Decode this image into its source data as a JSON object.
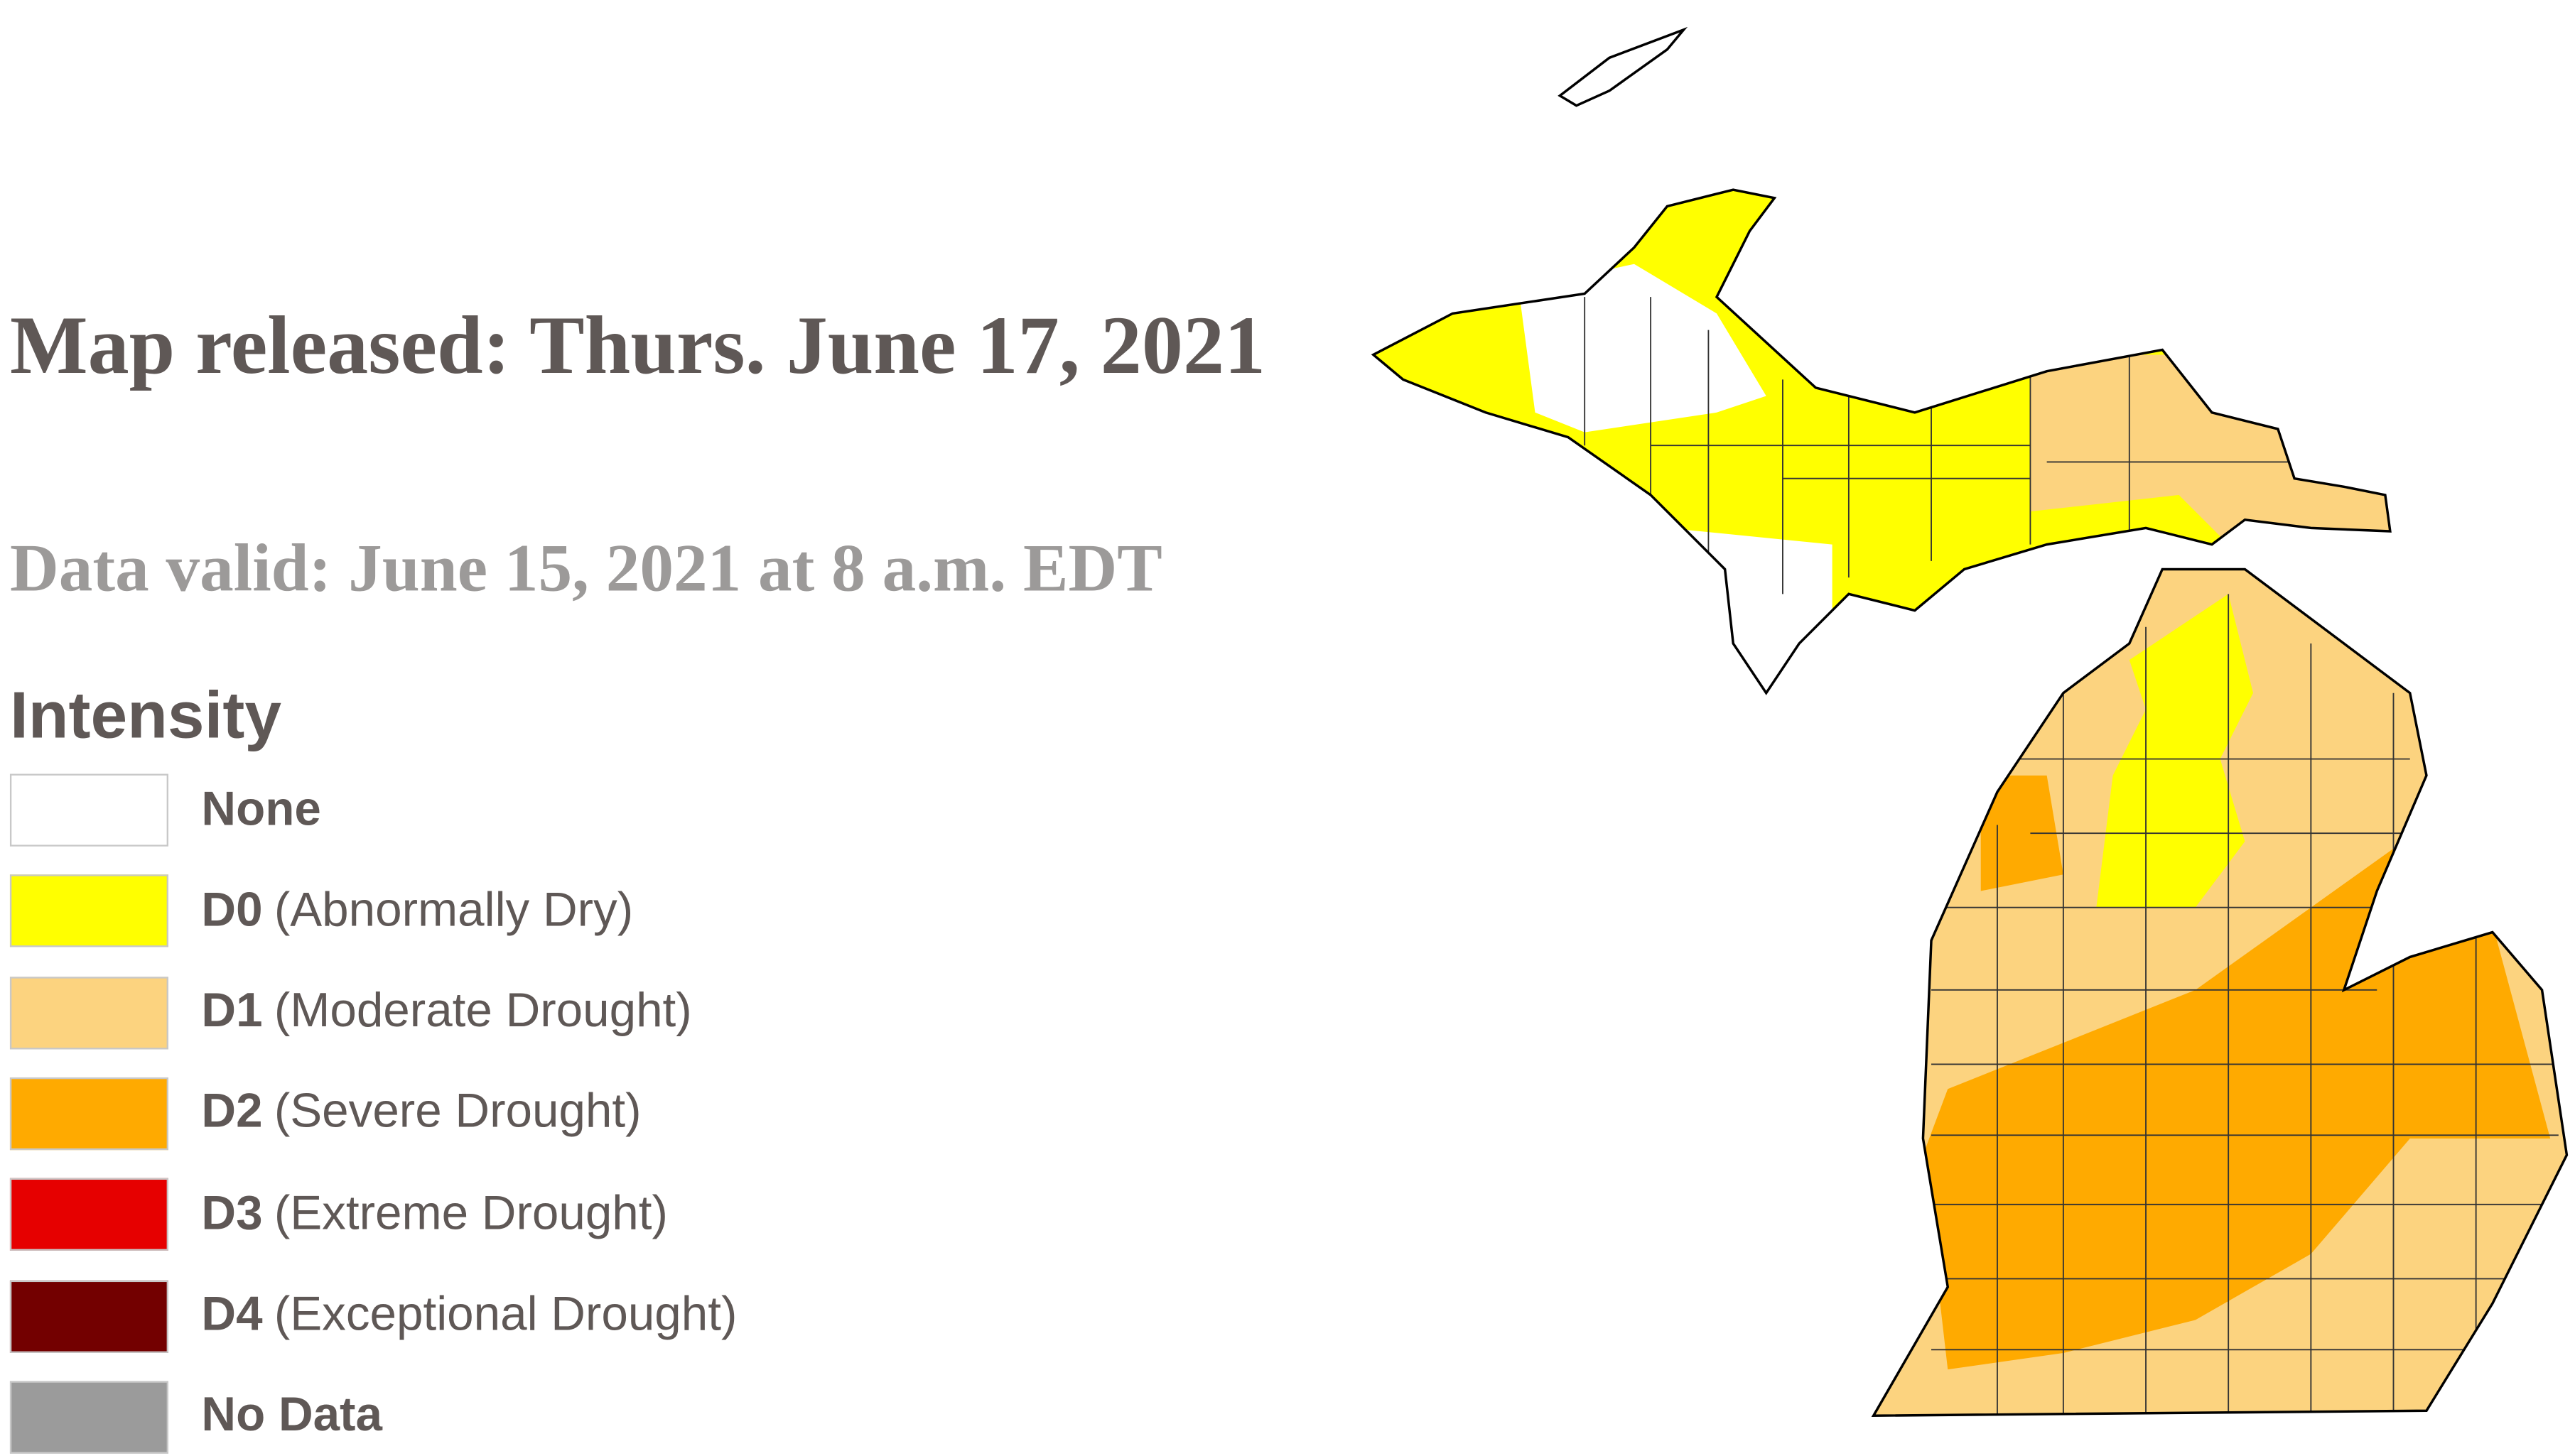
{
  "header": {
    "title": "Map released: Thurs. June 17, 2021",
    "subtitle": "Data valid: June 15, 2021 at 8 a.m. EDT"
  },
  "legend": {
    "title": "Intensity",
    "items": [
      {
        "code": "None",
        "color": "#ffffff"
      },
      {
        "code": "D0",
        "description": "(Abnormally Dry)",
        "color": "#ffff00"
      },
      {
        "code": "D1",
        "description": "(Moderate Drought)",
        "color": "#fcd37f"
      },
      {
        "code": "D2",
        "description": "(Severe Drought)",
        "color": "#ffaa00"
      },
      {
        "code": "D3",
        "description": "(Extreme Drought)",
        "color": "#e60000"
      },
      {
        "code": "D4",
        "description": "(Exceptional Drought)",
        "color": "#730000"
      },
      {
        "code": "No Data",
        "color": "#9b9b9b"
      }
    ]
  }
}
